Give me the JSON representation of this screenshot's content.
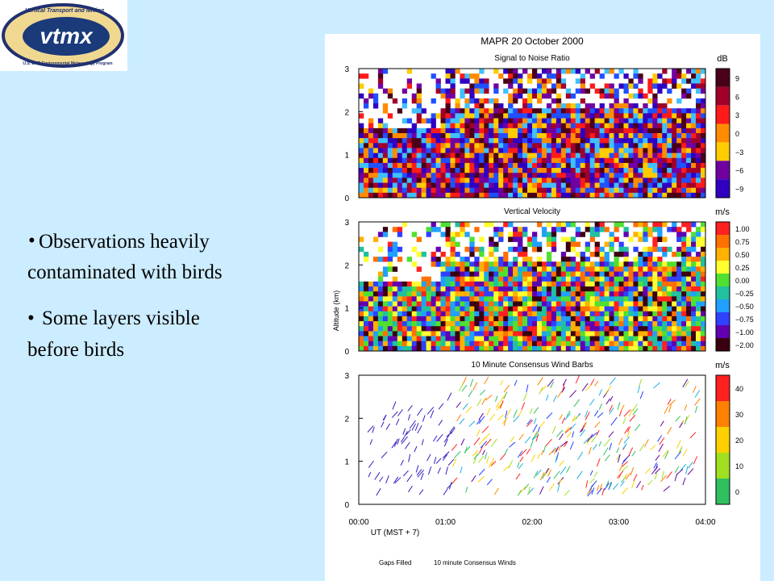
{
  "logo": {
    "text": "vtmx",
    "arc_top": "Vertical Transport and Mixing",
    "arc_bottom": "U.S. DOE Environmental Meteorology Program"
  },
  "bullets": [
    "Observations heavily contaminated with birds",
    "Some layers visible before birds"
  ],
  "figure": {
    "title": "MAPR 20 October 2000",
    "panels": [
      {
        "title": "Signal to Noise Ratio",
        "unit": "dB",
        "scale": [
          "9",
          "6",
          "3",
          "0",
          "−3",
          "−6",
          "−9"
        ]
      },
      {
        "title": "Vertical Velocity",
        "unit": "m/s",
        "scale": [
          "1.00",
          "0.75",
          "0.50",
          "0.25",
          "0.00",
          "−0.25",
          "−0.50",
          "−0.75",
          "−1.00",
          "−2.00"
        ]
      },
      {
        "title": "10 Minute Consensus Wind Barbs",
        "unit": "m/s",
        "scale": [
          "40",
          "30",
          "20",
          "10",
          "0"
        ]
      }
    ],
    "yticks": [
      "3",
      "2",
      "1",
      "0"
    ],
    "y_label": "Altitude (km)",
    "xticks": [
      "00:00",
      "01:00",
      "02:00",
      "03:00",
      "04:00"
    ],
    "x_label": "UT (MST + 7)",
    "footer": [
      "Gaps Filled",
      "10 minute Consensus Winds"
    ]
  }
}
